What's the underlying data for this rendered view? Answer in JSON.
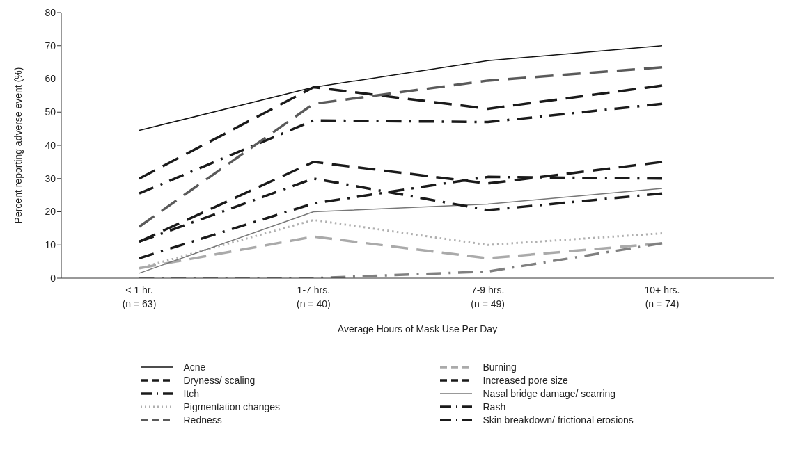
{
  "chart_data": {
    "type": "line",
    "xlabel": "Average Hours of Mask Use Per Day",
    "ylabel": "Percent reporting adverse event (%)",
    "categories": [
      "< 1 hr.\n(n = 63)",
      "1-7 hrs.\n(n = 40)",
      "7-9 hrs.\n(n = 49)",
      "10+ hrs.\n(n = 74)"
    ],
    "ylim": [
      0,
      80
    ],
    "yticks": [
      0,
      10,
      20,
      30,
      40,
      50,
      60,
      70,
      80
    ],
    "grid": false,
    "legend": "bottom",
    "marker": "none",
    "series": [
      {
        "name": "Acne",
        "color": "#111111",
        "line_style": "solid",
        "values": [
          44.5,
          57.5,
          65.5,
          70
        ]
      },
      {
        "name": "Dryness/ scaling",
        "color": "#1a1a1a",
        "line_style": "dashed",
        "values": [
          30,
          57.5,
          51,
          58
        ]
      },
      {
        "name": "Itch",
        "color": "#1a1a1a",
        "line_style": "dashdot",
        "values": [
          25.5,
          47.5,
          47,
          52.5
        ]
      },
      {
        "name": "Pigmentation changes",
        "color": "#b0b0b0",
        "line_style": "dotted",
        "values": [
          3,
          17.5,
          10,
          13.5
        ]
      },
      {
        "name": "Redness",
        "color": "#5a5a5a",
        "line_style": "dashed",
        "values": [
          15.5,
          52.5,
          59.5,
          63.5
        ]
      },
      {
        "name": "Burning",
        "color": "#aaaaaa",
        "line_style": "dashed",
        "values": [
          3,
          12.5,
          6,
          10.5
        ]
      },
      {
        "name": "Increased pore size",
        "color": "#1a1a1a",
        "line_style": "dashed",
        "values": [
          11,
          35,
          28.5,
          35
        ]
      },
      {
        "name": "Nasal bridge damage/ scarring",
        "color": "#777777",
        "line_style": "solid",
        "values": [
          1.5,
          20,
          22.3,
          27
        ]
      },
      {
        "name": "Rash",
        "color": "#1a1a1a",
        "line_style": "dashdot",
        "values": [
          11,
          30,
          20.5,
          25.5
        ]
      },
      {
        "name": "Skin breakdown/ frictional erosions",
        "color": "#1a1a1a",
        "line_style": "dashdot",
        "values": [
          6,
          22.5,
          30.5,
          30
        ]
      },
      {
        "color": "#808080",
        "line_style": "dashdot",
        "values": [
          0,
          0,
          2,
          10.5
        ]
      }
    ]
  }
}
